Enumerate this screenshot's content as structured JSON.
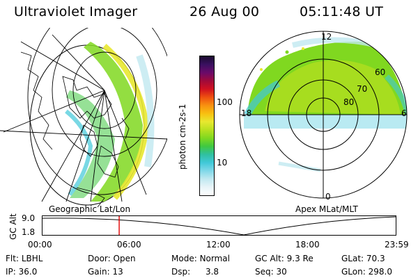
{
  "header": {
    "instrument": "Ultraviolet Imager",
    "date": "26 Aug 00",
    "time": "05:11:48 UT"
  },
  "colorbar": {
    "label": "photon cm-2s-1",
    "ticks": [
      "100",
      "10"
    ],
    "colors": [
      "#1a0a2e",
      "#3a1060",
      "#6a0a6a",
      "#a00a3a",
      "#d01020",
      "#ee5010",
      "#f89010",
      "#f8c010",
      "#e8e830",
      "#b8e020",
      "#80d820",
      "#40c840",
      "#30c0a0",
      "#40c8d8",
      "#80d8e8",
      "#c0e8f0",
      "#e8f4f8",
      "#ffffff"
    ]
  },
  "left_map": {
    "caption": "Geographic Lat/Lon"
  },
  "right_map": {
    "caption": "Apex MLat/MLT",
    "mlt_labels": [
      "12",
      "18",
      "6",
      "0"
    ],
    "lat_labels": [
      "60",
      "70",
      "80"
    ]
  },
  "altitude_plot": {
    "ylabel": "GC Alt",
    "yticks": [
      "9.0",
      "1.8"
    ],
    "xticks": [
      "00:00",
      "06:00",
      "12:00",
      "18:00",
      "23:59"
    ],
    "marker_time_hours": 5.2
  },
  "info": {
    "filter_label": "Flt:",
    "filter_value": "LBHL",
    "door_label": "Door:",
    "door_value": "Open",
    "mode_label": "Mode:",
    "mode_value": "Normal",
    "gcalt_label": "GC Alt:",
    "gcalt_value": "9.3 Re",
    "glat_label": "GLat:",
    "glat_value": "70.3",
    "ip_label": "IP:",
    "ip_value": "36.0",
    "gain_label": "Gain:",
    "gain_value": "13",
    "dsp_label": "Dsp:",
    "dsp_value": "3.8",
    "seq_label": "Seq:",
    "seq_value": "30",
    "glon_label": "GLon:",
    "glon_value": "298.0"
  }
}
